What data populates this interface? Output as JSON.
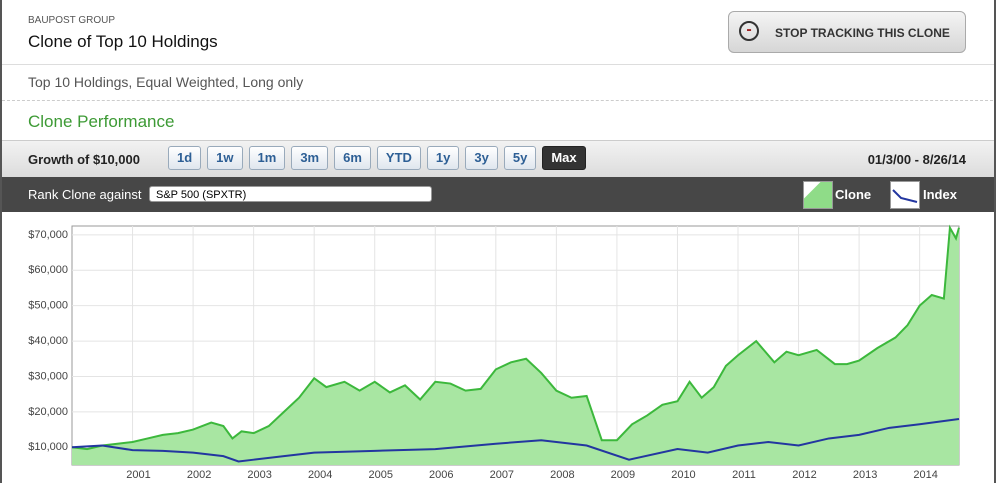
{
  "header": {
    "firm": "BAUPOST GROUP",
    "title": "Clone of Top 10 Holdings",
    "button": "STOP TRACKING THIS CLONE"
  },
  "description": "Top 10 Holdings, Equal Weighted, Long only",
  "section_title": "Clone Performance",
  "toolbar": {
    "label": "Growth of $10,000",
    "ranges": [
      "1d",
      "1w",
      "1m",
      "3m",
      "6m",
      "YTD",
      "1y",
      "3y",
      "5y",
      "Max"
    ],
    "active": "Max",
    "date_range": "01/3/00 - 8/26/14"
  },
  "rank": {
    "label": "Rank Clone against",
    "selected": "S&P 500 (SPXTR)"
  },
  "chart": {
    "type": "area",
    "grid": true,
    "xlim": [
      2000,
      2014.65
    ],
    "xticks": [
      2001,
      2002,
      2003,
      2004,
      2005,
      2006,
      2007,
      2008,
      2009,
      2010,
      2011,
      2012,
      2013,
      2014
    ],
    "ylim": [
      5000,
      72500
    ],
    "yticks": [
      {
        "value": 10000,
        "label": "$10,000"
      },
      {
        "value": 20000,
        "label": "$20,000"
      },
      {
        "value": 30000,
        "label": "$30,000"
      },
      {
        "value": 40000,
        "label": "$40,000"
      },
      {
        "value": 50000,
        "label": "$50,000"
      },
      {
        "value": 60000,
        "label": "$60,000"
      },
      {
        "value": 70000,
        "label": "$70,000"
      }
    ],
    "series": [
      {
        "name": "Clone",
        "color": "#3cb83c",
        "fill": "#a8e6a2",
        "x": [
          2000,
          2000.25,
          2000.5,
          2000.75,
          2001,
          2001.25,
          2001.5,
          2001.75,
          2002,
          2002.3,
          2002.5,
          2002.65,
          2002.8,
          2003,
          2003.25,
          2003.5,
          2003.75,
          2004,
          2004.2,
          2004.5,
          2004.75,
          2005,
          2005.25,
          2005.5,
          2005.75,
          2006,
          2006.25,
          2006.5,
          2006.75,
          2007,
          2007.25,
          2007.5,
          2007.75,
          2008,
          2008.25,
          2008.5,
          2008.75,
          2009,
          2009.25,
          2009.5,
          2009.75,
          2010,
          2010.2,
          2010.4,
          2010.6,
          2010.8,
          2011,
          2011.3,
          2011.6,
          2011.8,
          2012,
          2012.3,
          2012.6,
          2012.8,
          2013,
          2013.3,
          2013.6,
          2013.8,
          2014,
          2014.2,
          2014.4,
          2014.5,
          2014.6,
          2014.65
        ],
        "values": [
          10000,
          9500,
          10500,
          11000,
          11500,
          12500,
          13500,
          14000,
          15000,
          17000,
          16000,
          12500,
          14500,
          14000,
          16000,
          20000,
          24000,
          29500,
          27000,
          28500,
          26000,
          28500,
          25500,
          27500,
          23500,
          28500,
          28000,
          26000,
          26500,
          32000,
          34000,
          35000,
          31000,
          26000,
          24000,
          24500,
          12000,
          12000,
          16500,
          19000,
          22000,
          23000,
          28500,
          24000,
          27000,
          33000,
          36000,
          40000,
          34000,
          37000,
          36000,
          37500,
          33500,
          33500,
          34500,
          38000,
          41000,
          44500,
          50000,
          53000,
          52000,
          72000,
          69000,
          72000
        ]
      },
      {
        "name": "Index",
        "color": "#2336a0",
        "x": [
          2000,
          2000.5,
          2001,
          2001.5,
          2002,
          2002.5,
          2002.75,
          2003,
          2003.5,
          2004,
          2005,
          2006,
          2007,
          2007.75,
          2008.5,
          2009.2,
          2010,
          2010.5,
          2011,
          2011.5,
          2012,
          2012.5,
          2013,
          2013.5,
          2014,
          2014.65
        ],
        "values": [
          10000,
          10500,
          9200,
          9000,
          8500,
          7500,
          6000,
          6500,
          7500,
          8500,
          9000,
          9500,
          11000,
          12000,
          10500,
          6500,
          9500,
          8500,
          10500,
          11500,
          10500,
          12500,
          13500,
          15500,
          16500,
          18000
        ]
      }
    ]
  }
}
